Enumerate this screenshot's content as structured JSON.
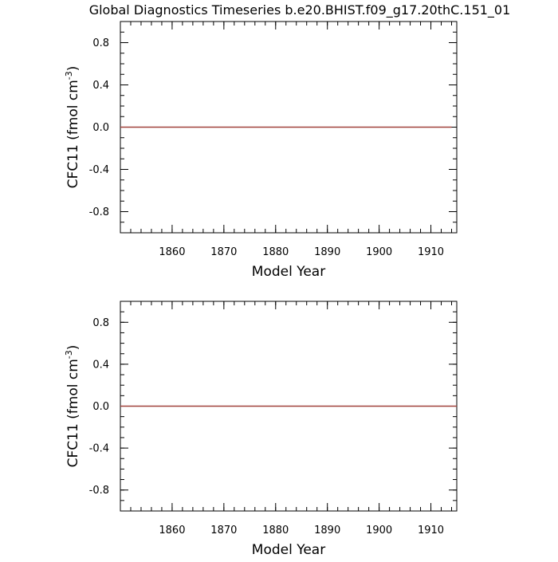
{
  "figure": {
    "title": "Global Diagnostics Timeseries b.e20.BHIST.f09_g17.20thC.151_01"
  },
  "colors": {
    "frame": "#000000",
    "zero_line": "#000000",
    "series_line": "#a0413a"
  },
  "chart_data": [
    {
      "type": "line",
      "xlabel": "Model Year",
      "ylabel": "CFC11 (fmol cm",
      "ylabel_sup": "-3",
      "ylabel_close": ")",
      "xlim": [
        1850,
        1915
      ],
      "ylim": [
        -1,
        1
      ],
      "xticks": [
        1860,
        1870,
        1880,
        1890,
        1900,
        1910
      ],
      "xtick_labels": [
        "1860",
        "1870",
        "1880",
        "1890",
        "1900",
        "1910"
      ],
      "yticks": [
        -0.8,
        -0.4,
        0.0,
        0.4,
        0.8
      ],
      "ytick_labels": [
        "-0.8",
        "-0.4",
        "0.0",
        "0.4",
        "0.8"
      ],
      "x_minor_step": 2,
      "y_minor_step": 0.1,
      "series": [
        {
          "x": [
            1850,
            1914
          ],
          "y": [
            0,
            0
          ]
        }
      ]
    },
    {
      "type": "line",
      "xlabel": "Model Year",
      "ylabel": "CFC11 (fmol cm",
      "ylabel_sup": "-3",
      "ylabel_close": ")",
      "xlim": [
        1850,
        1915
      ],
      "ylim": [
        -1,
        1
      ],
      "xticks": [
        1860,
        1870,
        1880,
        1890,
        1900,
        1910
      ],
      "xtick_labels": [
        "1860",
        "1870",
        "1880",
        "1890",
        "1900",
        "1910"
      ],
      "yticks": [
        -0.8,
        -0.4,
        0.0,
        0.4,
        0.8
      ],
      "ytick_labels": [
        "-0.8",
        "-0.4",
        "0.0",
        "0.4",
        "0.8"
      ],
      "x_minor_step": 2,
      "y_minor_step": 0.1,
      "series": [
        {
          "x": [
            1850,
            1915
          ],
          "y": [
            0,
            0
          ]
        }
      ]
    }
  ]
}
